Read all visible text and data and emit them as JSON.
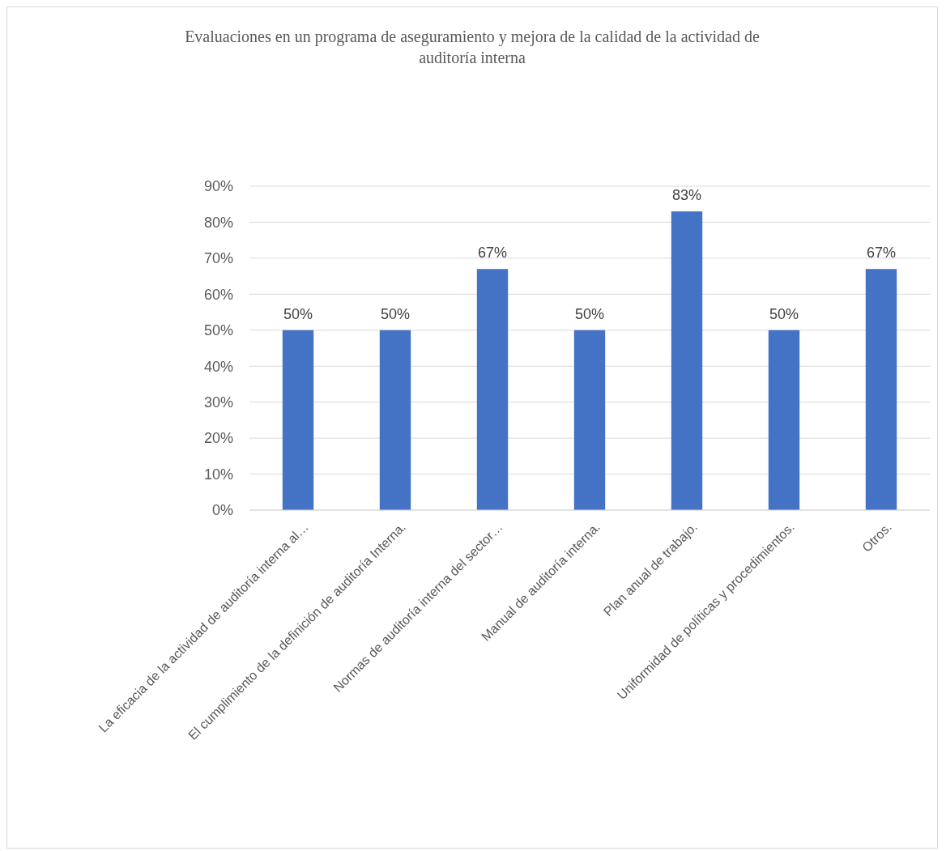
{
  "chart_data": {
    "type": "bar",
    "title": "Evaluaciones en un programa de aseguramiento y mejora de la calidad de la actividad de auditoría interna",
    "categories": [
      "La eficacia de la actividad de auditoría interna al…",
      "El cumplimiento de la definición de auditoría Interna.",
      "Normas de auditoría interna del sector…",
      "Manual de auditoría interna.",
      "Plan anual de trabajo.",
      "Uniformidad de políticas y procedimientos.",
      "Otros."
    ],
    "values": [
      50,
      50,
      67,
      50,
      83,
      50,
      67
    ],
    "value_labels": [
      "50%",
      "50%",
      "67%",
      "50%",
      "83%",
      "50%",
      "67%"
    ],
    "color": "#4472c4",
    "ylim": [
      0,
      90
    ],
    "yticks": [
      {
        "value": 0,
        "label": "0%"
      },
      {
        "value": 10,
        "label": "10%"
      },
      {
        "value": 20,
        "label": "20%"
      },
      {
        "value": 30,
        "label": "30%"
      },
      {
        "value": 40,
        "label": "40%"
      },
      {
        "value": 50,
        "label": "50%"
      },
      {
        "value": 60,
        "label": "60%"
      },
      {
        "value": 70,
        "label": "70%"
      },
      {
        "value": 80,
        "label": "80%"
      },
      {
        "value": 90,
        "label": "90%"
      }
    ],
    "grid": "y"
  }
}
